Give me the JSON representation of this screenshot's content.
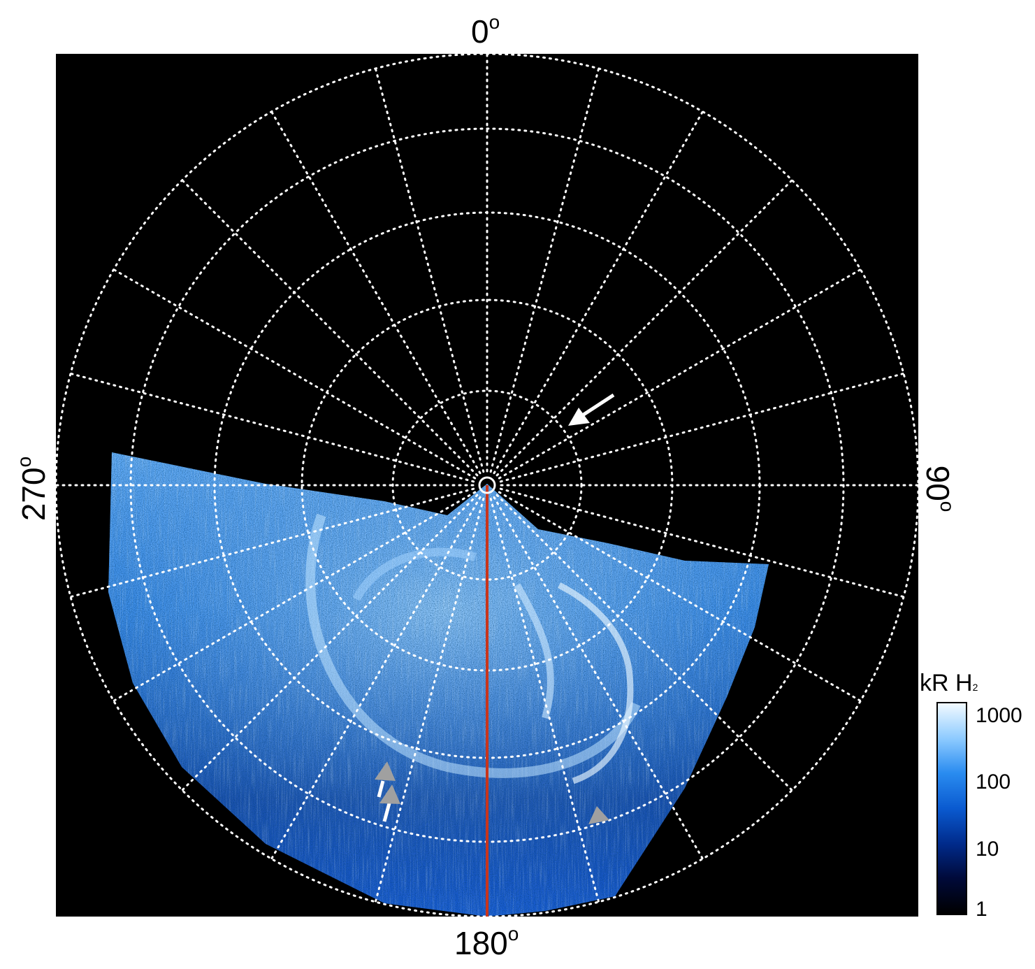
{
  "labels": {
    "top": "0",
    "right": "90",
    "bottom": "180",
    "left": "270",
    "degree_symbol": "o"
  },
  "colorbar": {
    "title": "kR H",
    "title_subscript": "2",
    "ticks": [
      "1000",
      "100",
      "10",
      "1"
    ],
    "colors": [
      "#000000",
      "#000a3a",
      "#002a8a",
      "#0a5ad0",
      "#2a8cf0",
      "#8ccaff",
      "#f2faff"
    ]
  },
  "image": {
    "description_colors": {
      "background": "#000000",
      "grid": "#ffffff",
      "meridian_line": "#c8351c",
      "arrow_white": "#ffffff",
      "arrow_gray": "#9a9a9a"
    }
  }
}
